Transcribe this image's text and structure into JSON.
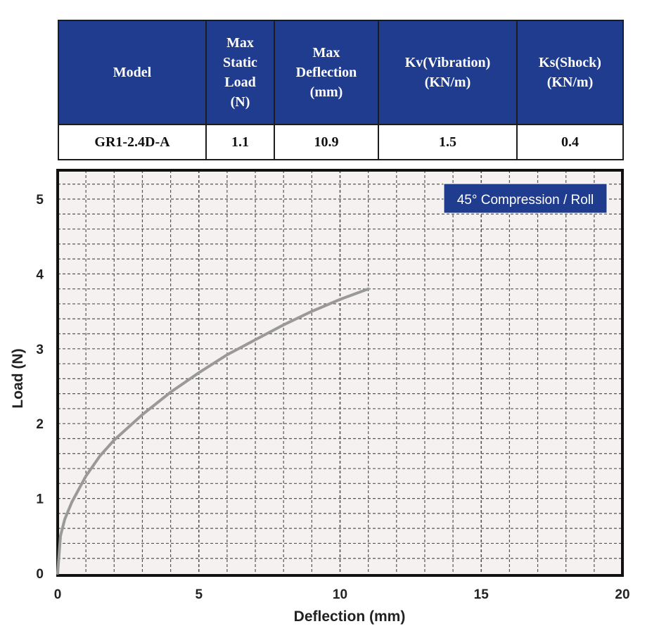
{
  "spec_table": {
    "headers": [
      "Model",
      "Max\nStatic\nLoad\n(N)",
      "Max\nDeflection\n(mm)",
      "Kv(Vibration)\n(KN/m)",
      "Ks(Shock)\n(KN/m)"
    ],
    "row": [
      "GR1-2.4D-A",
      "1.1",
      "10.9",
      "1.5",
      "0.4"
    ]
  },
  "chart_data": {
    "type": "line",
    "title": "",
    "badge": "45° Compression / Roll",
    "xlabel": "Deflection (mm)",
    "ylabel": "Load (N)",
    "xlim": [
      0,
      20
    ],
    "ylim": [
      0,
      5.3
    ],
    "xticks": [
      0,
      5,
      10,
      15,
      20
    ],
    "yticks": [
      0,
      1,
      2,
      3,
      4,
      5
    ],
    "grid": true,
    "series": [
      {
        "x": [
          0,
          0.1,
          0.25,
          0.5,
          1,
          1.5,
          2,
          3,
          4,
          5,
          6,
          7,
          8,
          9,
          10,
          11
        ],
        "y": [
          0,
          0.5,
          0.72,
          0.95,
          1.3,
          1.57,
          1.78,
          2.12,
          2.42,
          2.68,
          2.92,
          3.12,
          3.32,
          3.5,
          3.66,
          3.8
        ]
      }
    ],
    "colors": {
      "line": "#999999",
      "grid": "#555555",
      "plot_bg": "#f6f1f1",
      "badge_bg": "#1f3c8f"
    }
  }
}
